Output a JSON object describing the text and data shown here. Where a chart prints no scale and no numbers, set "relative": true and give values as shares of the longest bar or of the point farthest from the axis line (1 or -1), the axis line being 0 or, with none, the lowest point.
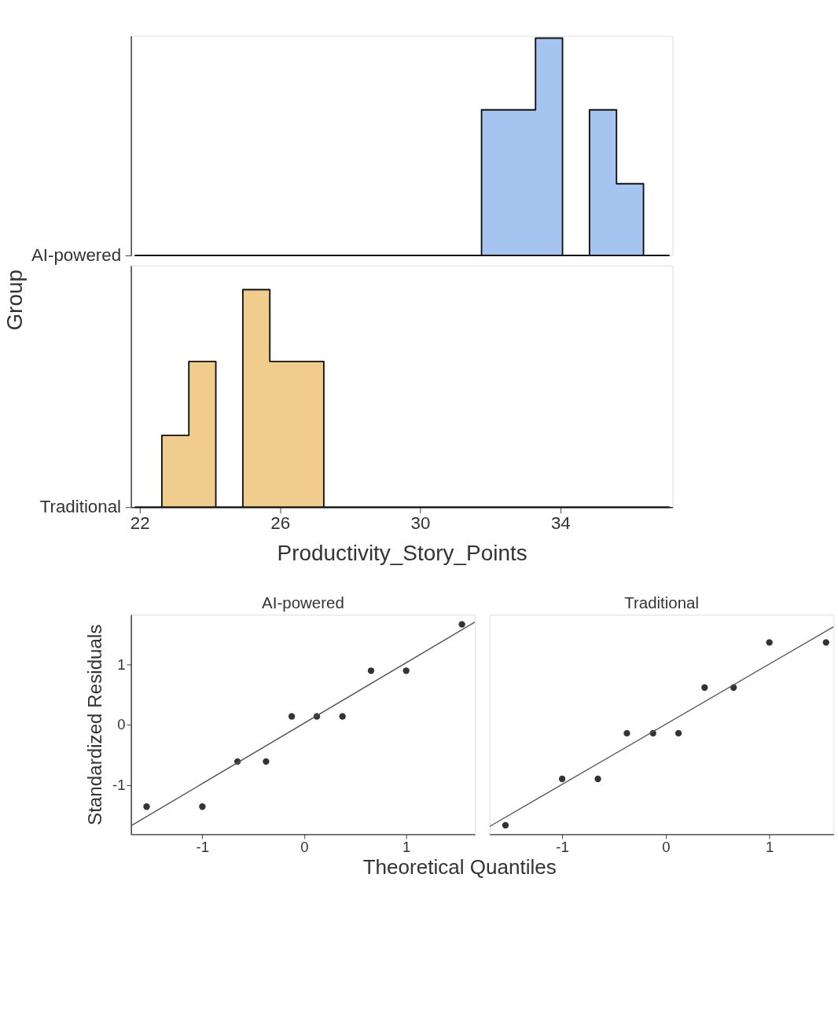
{
  "chart_data": [
    {
      "type": "area",
      "ylabel": "Group",
      "relative": true,
      "xlim": [
        21.75,
        37.2
      ],
      "xticks": [
        22,
        26,
        30,
        34
      ],
      "grid": false,
      "tick_labels": false,
      "x": [
        21.87,
        31.75,
        32.52,
        33.29,
        34.06,
        34.83,
        35.6,
        36.37,
        37.1
      ],
      "annotations": [
        "AI-powered"
      ],
      "color": "#a6c4f0",
      "values": [
        0,
        0.67,
        0.67,
        1,
        0,
        0.67,
        0.33,
        0,
        0
      ]
    },
    {
      "type": "area",
      "xlabel": "Productivity_Story_Points",
      "relative": true,
      "xlim": [
        21.75,
        37.2
      ],
      "xticks": [
        22,
        26,
        30,
        34
      ],
      "grid": false,
      "tick_labels": "x",
      "x": [
        21.87,
        22.63,
        23.4,
        24.17,
        24.94,
        25.71,
        26.48,
        27.25,
        37.1
      ],
      "annotations": [
        "Traditional"
      ],
      "color": "#f0cd8c",
      "values": [
        0,
        0.33,
        0.67,
        0,
        1,
        0.67,
        0.67,
        0,
        0
      ]
    },
    {
      "type": "scatter",
      "title": "AI-powered",
      "xlabel": "Theoretical Quantiles",
      "ylabel": "Standardized Residuals",
      "xlim": [
        -1.7,
        1.675
      ],
      "ylim": [
        -1.82,
        1.83
      ],
      "xticks": [
        -1,
        0,
        1
      ],
      "yticks": [
        -1,
        0,
        1
      ],
      "grid": false,
      "marker": "circle",
      "x": [
        -1.547,
        -1.0,
        -0.655,
        -0.375,
        -0.123,
        0.123,
        0.375,
        0.655,
        1.0,
        1.547
      ],
      "series": [
        {
          "type": "scatter",
          "color": "#333333",
          "values": [
            -1.36,
            -1.36,
            -0.61,
            -0.61,
            0.14,
            0.14,
            0.14,
            0.9,
            0.9,
            1.67
          ]
        },
        {
          "type": "line",
          "marker": "none",
          "color": "#555555",
          "x": [
            -1.7,
            1.675
          ],
          "values": [
            -1.68,
            1.71
          ]
        }
      ]
    },
    {
      "type": "scatter",
      "title": "Traditional",
      "xlim": [
        -1.7,
        1.62
      ],
      "ylim": [
        -1.82,
        1.83
      ],
      "xticks": [
        -1,
        0,
        1
      ],
      "yticks": [
        -1,
        0,
        1
      ],
      "grid": false,
      "marker": "circle",
      "tick_labels": "x",
      "x": [
        -1.547,
        -1.0,
        -0.655,
        -0.375,
        -0.123,
        0.123,
        0.375,
        0.655,
        1.0,
        1.547
      ],
      "series": [
        {
          "type": "scatter",
          "color": "#333333",
          "values": [
            -1.67,
            -0.9,
            -0.9,
            -0.14,
            -0.14,
            -0.14,
            0.62,
            0.62,
            1.37,
            1.37
          ]
        },
        {
          "type": "line",
          "marker": "none",
          "color": "#555555",
          "x": [
            -1.7,
            1.62
          ],
          "values": [
            -1.69,
            1.63
          ]
        }
      ]
    }
  ]
}
